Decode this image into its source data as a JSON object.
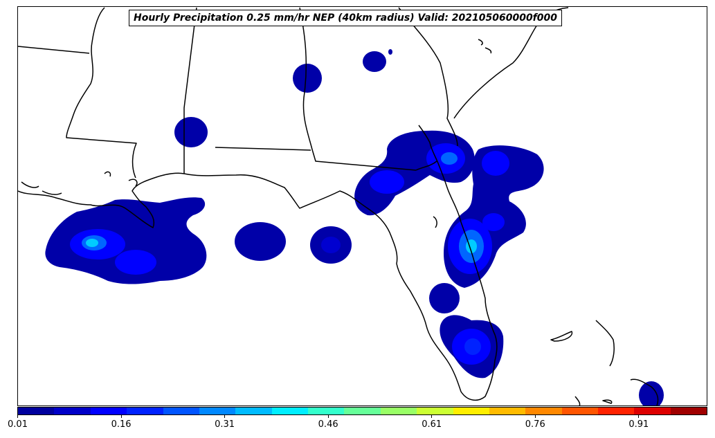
{
  "title": "Hourly Precipitation 0.25 mm/hr NEP (40km radius) Valid: 202105060000f000",
  "colorbar": {
    "ticks": [
      "0.01",
      "0.16",
      "0.31",
      "0.46",
      "0.61",
      "0.76",
      "0.91"
    ],
    "colors": [
      "#00009e",
      "#0000c8",
      "#0000ff",
      "#0022ff",
      "#0054ff",
      "#0088ff",
      "#00bbff",
      "#00eeff",
      "#33ffcc",
      "#66ff99",
      "#99ff66",
      "#ccff33",
      "#ffee00",
      "#ffbb00",
      "#ff8800",
      "#ff5500",
      "#ff2200",
      "#dd0000",
      "#a00000"
    ]
  },
  "legend_colors": {
    "low": "#0000a8",
    "mid": "#0000ff",
    "high": "#00ccff",
    "peak": "#00ffee"
  }
}
